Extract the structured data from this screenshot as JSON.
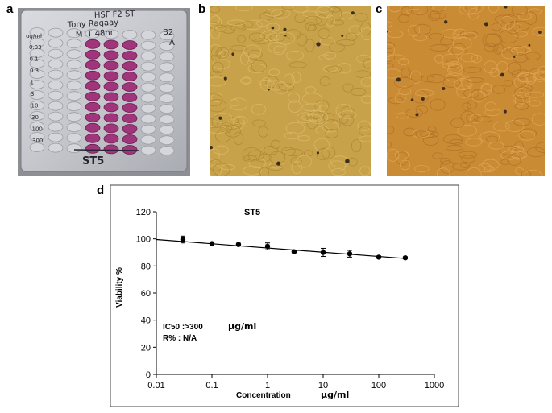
{
  "figure": {
    "panels": {
      "a": "a",
      "b": "b",
      "c": "c",
      "d": "d"
    }
  },
  "plate": {
    "handwriting_lines": [
      "HSF F2 ST",
      "Tony Ragaay",
      "MTT 48hr",
      "B2",
      "A"
    ],
    "row_labels": [
      "0.03",
      "0.1",
      "0.3",
      "1",
      "3",
      "10",
      "30",
      "100",
      "300"
    ],
    "row_unit": "ug/ml",
    "sample": "ST5",
    "well_color": "#a0357c"
  },
  "micrographs": {
    "b": {
      "base_color": "#c8a24a",
      "description_colors": [
        "#b18a35",
        "#d8b865"
      ]
    },
    "c": {
      "base_color": "#c98c35",
      "description_colors": [
        "#b57328",
        "#dea352"
      ]
    }
  },
  "chart_data": {
    "type": "line",
    "title": "ST5",
    "xlabel": "Concentration",
    "xlabel_unit": "μg/ml",
    "ylabel": "Viability %",
    "x_scale": "log",
    "xlim": [
      0.01,
      1000
    ],
    "ylim": [
      0,
      120
    ],
    "x_ticks": [
      {
        "value": 0.01,
        "label": "0.01"
      },
      {
        "value": 0.1,
        "label": "0.1"
      },
      {
        "value": 1,
        "label": "1"
      },
      {
        "value": 10,
        "label": "10"
      },
      {
        "value": 100,
        "label": "100"
      },
      {
        "value": 1000,
        "label": "1000"
      }
    ],
    "y_ticks": [
      0,
      20,
      40,
      60,
      80,
      100,
      120
    ],
    "series": [
      {
        "x": [
          0.03,
          0.1,
          0.3,
          1,
          3,
          10,
          30,
          100,
          300
        ],
        "y": [
          99.5,
          96.5,
          95.8,
          94.5,
          90.5,
          90,
          89,
          86.5,
          86
        ],
        "error": [
          2.5,
          1,
          1,
          2.5,
          0.8,
          3,
          2.5,
          0.8,
          0.8
        ]
      }
    ],
    "fit_line": {
      "x": [
        0.01,
        300
      ],
      "y": [
        99.5,
        85.5
      ]
    },
    "annotations": {
      "ic50_label": "IC50 :>300",
      "ic50_unit": "μg/ml",
      "r_percent": "R% : N/A"
    },
    "grid": false
  }
}
